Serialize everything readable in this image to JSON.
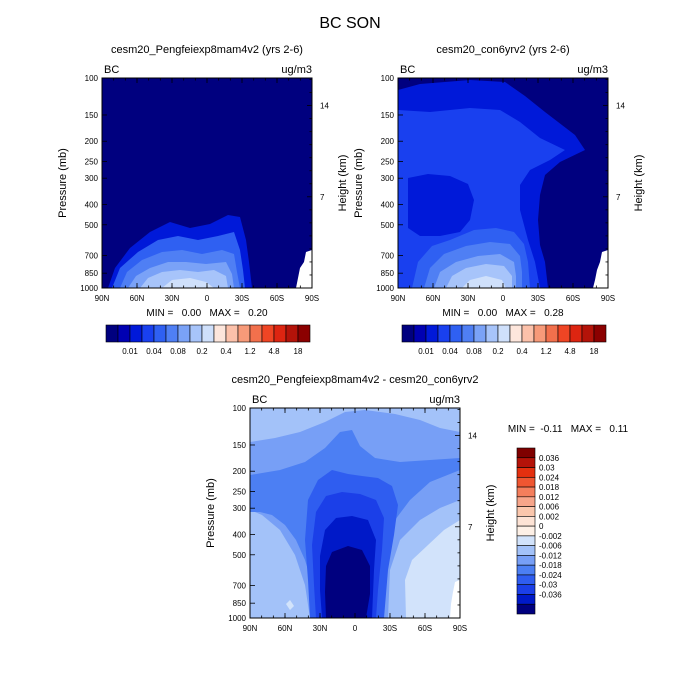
{
  "figure": {
    "title": "BC SON"
  },
  "colors": {
    "abs_levels": [
      "#00007f",
      "#0000b2",
      "#0019d9",
      "#1940ef",
      "#2f60f2",
      "#4f7ff4",
      "#7aa2f7",
      "#a7c4fa",
      "#cfe0fb",
      "#fde6dc",
      "#fcc1aa",
      "#f79a79",
      "#f2704c",
      "#ef4524",
      "#dd2511",
      "#b41309",
      "#8b0000"
    ],
    "diff_levels": [
      "#00007f",
      "#0019c8",
      "#1b3fe8",
      "#2f5df0",
      "#4c7ff3",
      "#779ff6",
      "#a3c2f9",
      "#d2e3fb",
      "#fdf0e6",
      "#fde3d5",
      "#fbc7ad",
      "#f7a58a",
      "#f47e5c",
      "#ef5631",
      "#e4300f",
      "#b41309",
      "#7f0000"
    ]
  },
  "chart_data": [
    {
      "type": "heatmap",
      "id": "panel_a",
      "title": "cesm20_Pengfeiexp8mam4v2 (yrs 2-6)",
      "left_label": "BC",
      "right_label": "ug/m3",
      "ylabel": "Pressure (mb)",
      "ylabel_right": "Height (km)",
      "xlim": [
        90,
        -90
      ],
      "x_tick_labels": [
        "90N",
        "60N",
        "30N",
        "0",
        "30S",
        "60S",
        "90S"
      ],
      "y_tick_labels": [
        "100",
        "150",
        "200",
        "250",
        "300",
        "400",
        "500",
        "700",
        "850",
        "1000"
      ],
      "y_right_tick_labels": [
        "14",
        "7"
      ],
      "stats_text": "MIN =   0.00   MAX =   0.20",
      "colorbar_labels": [
        "0.01",
        "0.04",
        "0.08",
        "0.2",
        "0.4",
        "1.2",
        "4.8",
        "18"
      ]
    },
    {
      "type": "heatmap",
      "id": "panel_b",
      "title": "cesm20_con6yrv2 (yrs 2-6)",
      "left_label": "BC",
      "right_label": "ug/m3",
      "ylabel": "Pressure (mb)",
      "ylabel_right": "Height (km)",
      "xlim": [
        90,
        -90
      ],
      "x_tick_labels": [
        "90N",
        "60N",
        "30N",
        "0",
        "30S",
        "60S",
        "90S"
      ],
      "y_tick_labels": [
        "100",
        "150",
        "200",
        "250",
        "300",
        "400",
        "500",
        "700",
        "850",
        "1000"
      ],
      "y_right_tick_labels": [
        "14",
        "7"
      ],
      "stats_text": "MIN =   0.00   MAX =   0.28",
      "colorbar_labels": [
        "0.01",
        "0.04",
        "0.08",
        "0.2",
        "0.4",
        "1.2",
        "4.8",
        "18"
      ]
    },
    {
      "type": "heatmap",
      "id": "panel_c",
      "title": "cesm20_Pengfeiexp8mam4v2 - cesm20_con6yrv2",
      "left_label": "BC",
      "right_label": "ug/m3",
      "ylabel": "Pressure (mb)",
      "ylabel_right": "Height (km)",
      "xlim": [
        90,
        -90
      ],
      "x_tick_labels": [
        "90N",
        "60N",
        "30N",
        "0",
        "30S",
        "60S",
        "90S"
      ],
      "y_tick_labels": [
        "100",
        "150",
        "200",
        "250",
        "300",
        "400",
        "500",
        "700",
        "850",
        "1000"
      ],
      "y_right_tick_labels": [
        "14",
        "7"
      ],
      "stats_text": "MIN =  -0.11   MAX =   0.11",
      "colorbar_labels": [
        "0.036",
        "0.03",
        "0.024",
        "0.018",
        "0.012",
        "0.006",
        "0.002",
        "0",
        "-0.002",
        "-0.006",
        "-0.012",
        "-0.018",
        "-0.024",
        "-0.03",
        "-0.036"
      ]
    }
  ]
}
